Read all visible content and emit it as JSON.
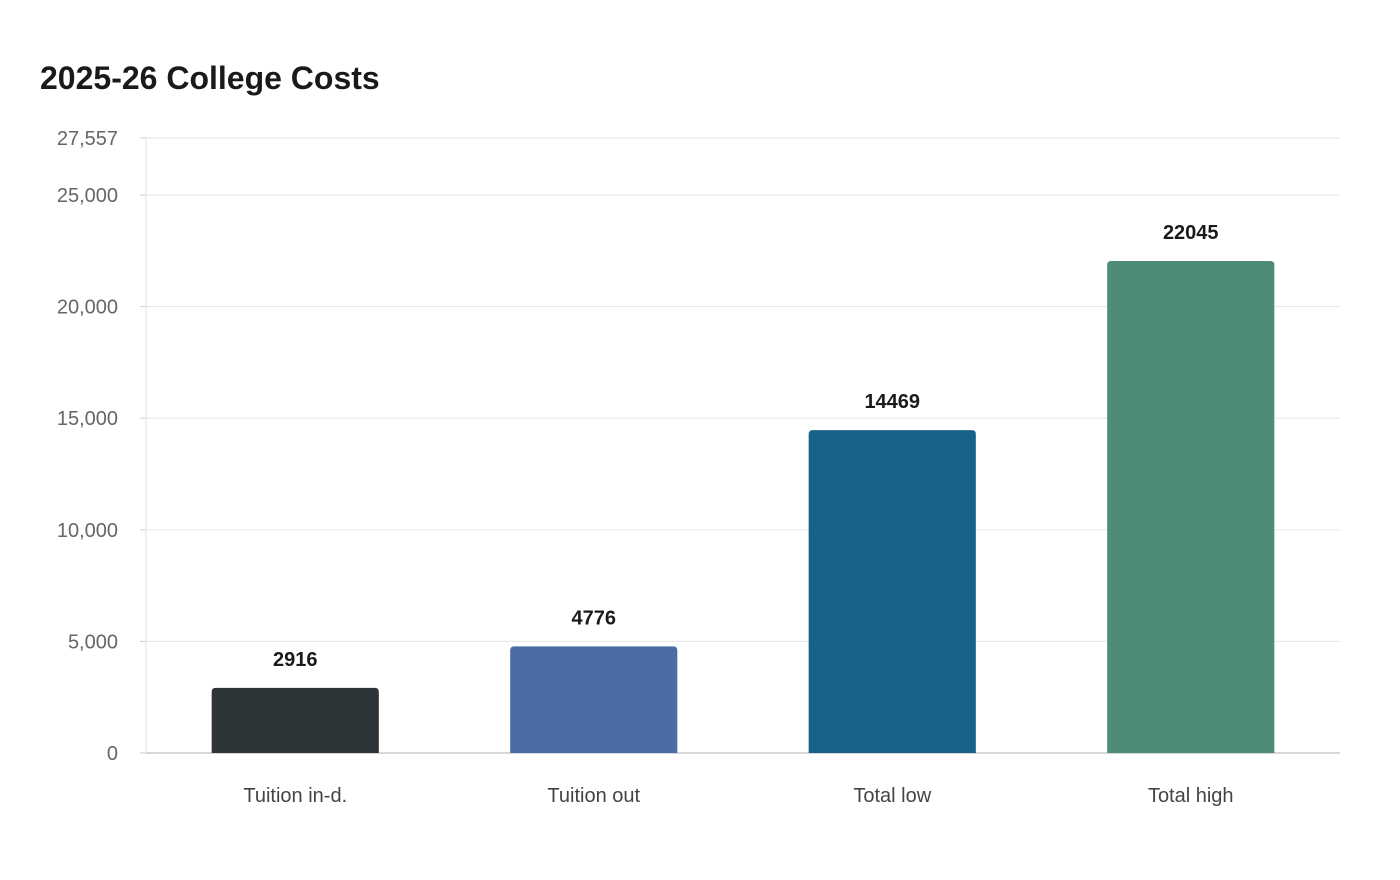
{
  "chart_data": {
    "type": "bar",
    "title": "2025-26 College Costs",
    "xlabel": "",
    "ylabel": "",
    "categories": [
      "Tuition in-d.",
      "Tuition out",
      "Total low",
      "Total high"
    ],
    "values": [
      2916,
      4776,
      14469,
      22045
    ],
    "value_labels": [
      "2916",
      "4776",
      "14469",
      "22045"
    ],
    "colors": [
      "#2e3538",
      "#4a6ea3",
      "#186289",
      "#4e8c7a"
    ],
    "ylim": [
      0,
      27557
    ],
    "yticks": [
      0,
      5000,
      10000,
      15000,
      20000,
      25000,
      27557
    ],
    "ytick_labels": [
      "0",
      "5,000",
      "10,000",
      "15,000",
      "20,000",
      "25,000",
      "27,557"
    ],
    "grid": true,
    "legend": "none"
  }
}
